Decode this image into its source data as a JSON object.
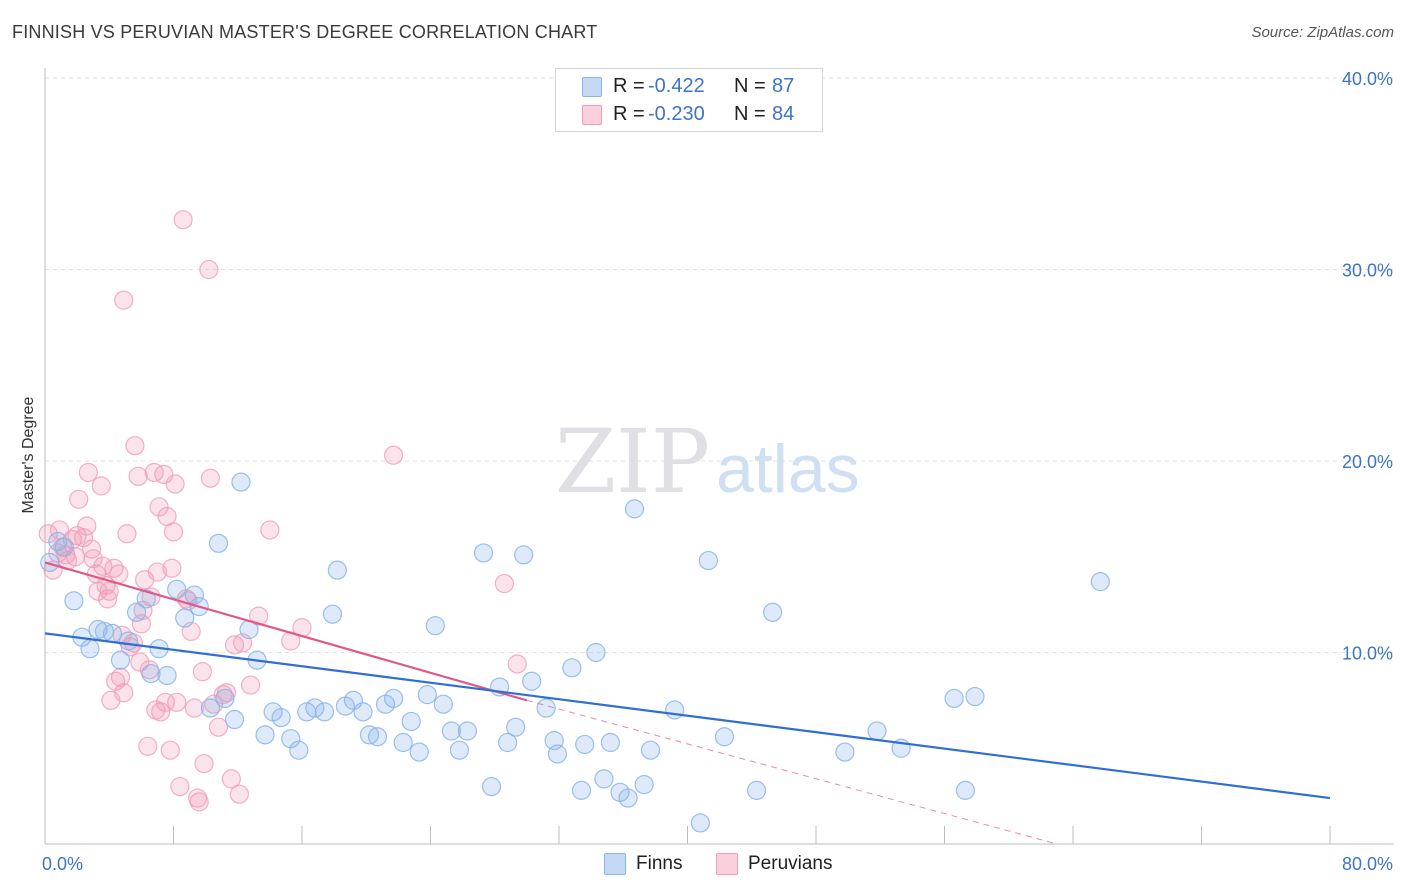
{
  "header": {
    "title": "FINNISH VS PERUVIAN MASTER'S DEGREE CORRELATION CHART",
    "source": "Source: ZipAtlas.com"
  },
  "watermark": {
    "zip": "ZIP",
    "atlas": "atlas"
  },
  "legend_top": {
    "rows": [
      {
        "r_label": "R = ",
        "r_value": "-0.422",
        "n_label": "N = ",
        "n_value": "87",
        "color": "#aac8f0"
      },
      {
        "r_label": "R = ",
        "r_value": "-0.230",
        "n_label": "N = ",
        "n_value": "84",
        "color": "#f6b8cb"
      }
    ]
  },
  "legend_bottom": {
    "items": [
      {
        "label": "Finns",
        "color": "#aac8f0"
      },
      {
        "label": "Peruvians",
        "color": "#f6b8cb"
      }
    ]
  },
  "chart_data": {
    "type": "scatter",
    "ylabel": "Master's Degree",
    "xlim": [
      0,
      80
    ],
    "ylim": [
      0,
      42
    ],
    "x_tick_labels": [
      "0.0%",
      "80.0%"
    ],
    "y_ticks": [
      10,
      20,
      30,
      40
    ],
    "y_tick_labels": [
      "10.0%",
      "20.0%",
      "30.0%",
      "40.0%"
    ],
    "grid": true,
    "legend_placement": "top-center",
    "colors": {
      "finns_point": "#8ab4e8",
      "finns_line": "#2e6fd1",
      "peruvians_point": "#f19bb8",
      "peruvians_line": "#e0588a"
    },
    "series": [
      {
        "name": "Finns",
        "trend": {
          "x0": 0,
          "y0": 11.0,
          "x1": 80,
          "y1": 2.4
        },
        "points": [
          [
            0.3,
            14.7
          ],
          [
            0.8,
            15.8
          ],
          [
            1.2,
            15.5
          ],
          [
            1.8,
            12.7
          ],
          [
            2.3,
            10.8
          ],
          [
            2.8,
            10.2
          ],
          [
            3.3,
            11.2
          ],
          [
            3.7,
            11.1
          ],
          [
            4.2,
            11.0
          ],
          [
            4.7,
            9.6
          ],
          [
            5.2,
            10.6
          ],
          [
            5.7,
            12.1
          ],
          [
            6.3,
            12.8
          ],
          [
            6.6,
            8.9
          ],
          [
            7.1,
            10.2
          ],
          [
            7.6,
            8.8
          ],
          [
            8.2,
            13.3
          ],
          [
            8.7,
            11.8
          ],
          [
            9.3,
            13.0
          ],
          [
            9.6,
            12.4
          ],
          [
            10.3,
            7.1
          ],
          [
            10.8,
            15.7
          ],
          [
            11.2,
            7.6
          ],
          [
            11.8,
            6.5
          ],
          [
            12.2,
            18.9
          ],
          [
            12.7,
            11.2
          ],
          [
            13.2,
            9.6
          ],
          [
            13.7,
            5.7
          ],
          [
            14.2,
            6.9
          ],
          [
            14.7,
            6.6
          ],
          [
            15.3,
            5.5
          ],
          [
            15.8,
            4.9
          ],
          [
            16.3,
            6.9
          ],
          [
            16.8,
            7.1
          ],
          [
            17.4,
            6.9
          ],
          [
            17.9,
            12.0
          ],
          [
            18.2,
            14.3
          ],
          [
            18.7,
            7.2
          ],
          [
            19.2,
            7.5
          ],
          [
            19.8,
            6.9
          ],
          [
            20.2,
            5.7
          ],
          [
            20.7,
            5.6
          ],
          [
            21.2,
            7.3
          ],
          [
            21.7,
            7.6
          ],
          [
            22.3,
            5.3
          ],
          [
            22.8,
            6.4
          ],
          [
            23.3,
            4.8
          ],
          [
            23.8,
            7.8
          ],
          [
            24.3,
            11.4
          ],
          [
            24.8,
            7.3
          ],
          [
            25.3,
            5.9
          ],
          [
            25.8,
            4.9
          ],
          [
            26.3,
            5.9
          ],
          [
            27.3,
            15.2
          ],
          [
            27.8,
            3.0
          ],
          [
            28.3,
            8.2
          ],
          [
            28.8,
            5.3
          ],
          [
            29.3,
            6.1
          ],
          [
            29.8,
            15.1
          ],
          [
            30.3,
            8.5
          ],
          [
            31.2,
            7.1
          ],
          [
            31.7,
            5.4
          ],
          [
            31.9,
            4.7
          ],
          [
            32.8,
            9.2
          ],
          [
            33.4,
            2.8
          ],
          [
            33.6,
            5.2
          ],
          [
            34.3,
            10.0
          ],
          [
            34.8,
            3.4
          ],
          [
            35.2,
            5.3
          ],
          [
            35.8,
            2.7
          ],
          [
            36.3,
            2.4
          ],
          [
            36.7,
            17.5
          ],
          [
            37.3,
            3.1
          ],
          [
            37.7,
            4.9
          ],
          [
            39.2,
            7.0
          ],
          [
            40.8,
            1.1
          ],
          [
            41.3,
            14.8
          ],
          [
            42.3,
            5.6
          ],
          [
            44.3,
            2.8
          ],
          [
            45.3,
            12.1
          ],
          [
            49.8,
            4.8
          ],
          [
            51.8,
            5.9
          ],
          [
            53.3,
            5.0
          ],
          [
            56.6,
            7.6
          ],
          [
            57.3,
            2.8
          ],
          [
            57.9,
            7.7
          ],
          [
            65.7,
            13.7
          ]
        ]
      },
      {
        "name": "Peruvians",
        "trend": {
          "x0": 0,
          "y0": 14.7,
          "x1": 30,
          "y1": 7.5
        },
        "trend_dashed": {
          "x0": 30,
          "y0": 7.5,
          "x1": 63,
          "y1": 0
        },
        "points": [
          [
            0.2,
            16.2
          ],
          [
            0.5,
            14.3
          ],
          [
            0.8,
            15.2
          ],
          [
            1.1,
            15.5
          ],
          [
            1.4,
            14.8
          ],
          [
            1.7,
            15.9
          ],
          [
            1.9,
            15.0
          ],
          [
            2.1,
            18.0
          ],
          [
            2.4,
            16.0
          ],
          [
            2.6,
            16.6
          ],
          [
            2.7,
            19.4
          ],
          [
            2.9,
            15.4
          ],
          [
            3.2,
            14.1
          ],
          [
            3.3,
            13.2
          ],
          [
            3.5,
            18.7
          ],
          [
            3.6,
            14.5
          ],
          [
            3.8,
            13.5
          ],
          [
            3.9,
            12.8
          ],
          [
            4.0,
            13.2
          ],
          [
            4.1,
            7.5
          ],
          [
            4.3,
            14.4
          ],
          [
            4.4,
            8.5
          ],
          [
            4.6,
            14.1
          ],
          [
            4.7,
            8.7
          ],
          [
            4.8,
            10.9
          ],
          [
            4.9,
            7.9
          ],
          [
            5.1,
            16.2
          ],
          [
            5.3,
            10.3
          ],
          [
            5.5,
            10.5
          ],
          [
            5.6,
            20.8
          ],
          [
            5.8,
            19.2
          ],
          [
            6.0,
            11.5
          ],
          [
            6.2,
            13.8
          ],
          [
            6.4,
            5.1
          ],
          [
            6.5,
            9.1
          ],
          [
            6.6,
            12.9
          ],
          [
            6.8,
            19.4
          ],
          [
            6.9,
            7.0
          ],
          [
            7.0,
            14.2
          ],
          [
            7.1,
            17.6
          ],
          [
            7.2,
            6.9
          ],
          [
            7.4,
            19.3
          ],
          [
            7.5,
            7.4
          ],
          [
            7.6,
            17.1
          ],
          [
            7.8,
            4.9
          ],
          [
            7.9,
            14.4
          ],
          [
            8.0,
            16.3
          ],
          [
            8.1,
            18.8
          ],
          [
            8.2,
            7.4
          ],
          [
            8.4,
            3.0
          ],
          [
            8.6,
            32.6
          ],
          [
            8.8,
            12.8
          ],
          [
            8.9,
            12.7
          ],
          [
            9.1,
            11.1
          ],
          [
            9.3,
            7.1
          ],
          [
            9.5,
            2.4
          ],
          [
            9.6,
            2.2
          ],
          [
            9.8,
            9.0
          ],
          [
            9.9,
            4.2
          ],
          [
            10.2,
            30.0
          ],
          [
            10.3,
            19.1
          ],
          [
            10.5,
            7.3
          ],
          [
            10.8,
            6.1
          ],
          [
            11.1,
            7.8
          ],
          [
            11.3,
            7.9
          ],
          [
            11.6,
            3.4
          ],
          [
            11.8,
            10.4
          ],
          [
            12.1,
            2.6
          ],
          [
            12.3,
            10.5
          ],
          [
            12.8,
            8.3
          ],
          [
            13.3,
            11.9
          ],
          [
            14.0,
            16.4
          ],
          [
            15.3,
            10.6
          ],
          [
            16.0,
            11.3
          ],
          [
            21.7,
            20.3
          ],
          [
            28.6,
            13.6
          ],
          [
            29.4,
            9.4
          ],
          [
            4.9,
            28.4
          ],
          [
            2.0,
            16.1
          ],
          [
            1.3,
            15.1
          ],
          [
            0.9,
            16.4
          ],
          [
            3.0,
            14.9
          ],
          [
            5.9,
            9.5
          ],
          [
            6.1,
            12.2
          ]
        ]
      }
    ]
  }
}
